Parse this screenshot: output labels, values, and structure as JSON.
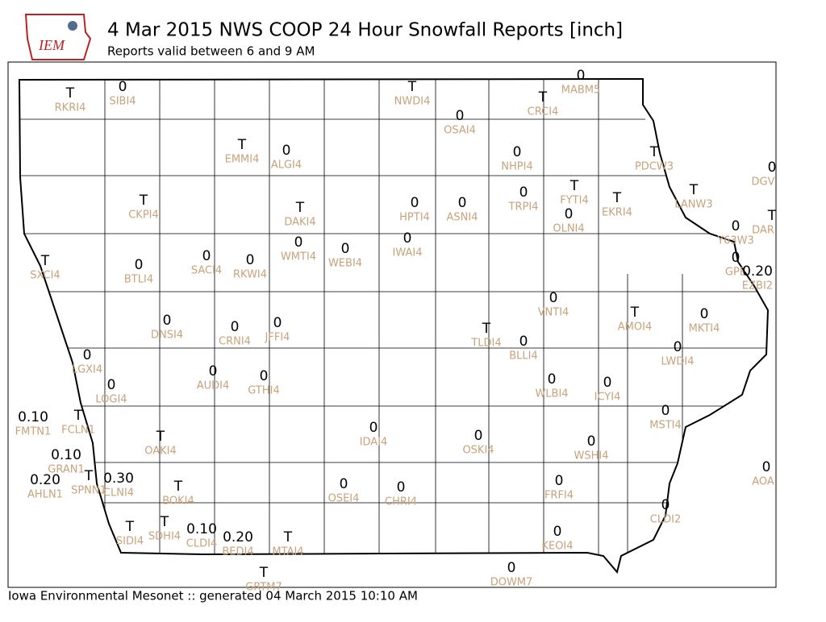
{
  "header": {
    "logo_text": "IEM",
    "title": "4 Mar 2015 NWS COOP 24 Hour Snowfall Reports [inch]",
    "subtitle": "Reports valid between 6 and 9 AM"
  },
  "footer": "Iowa Environmental Mesonet :: generated 04 March 2015 10:10 AM",
  "stations": [
    {
      "id": "RKRI4",
      "value": "T"
    },
    {
      "id": "SIBI4",
      "value": "0"
    },
    {
      "id": "NWDI4",
      "value": "T"
    },
    {
      "id": "MABM5",
      "value": "0"
    },
    {
      "id": "CRCI4",
      "value": "T"
    },
    {
      "id": "OSAI4",
      "value": "0"
    },
    {
      "id": "EMMI4",
      "value": "T"
    },
    {
      "id": "ALGI4",
      "value": "0"
    },
    {
      "id": "NHPI4",
      "value": "0"
    },
    {
      "id": "PDCW3",
      "value": "T"
    },
    {
      "id": "DGV",
      "value": "0"
    },
    {
      "id": "CKPI4",
      "value": "T"
    },
    {
      "id": "DAKI4",
      "value": "T"
    },
    {
      "id": "HPTI4",
      "value": "0"
    },
    {
      "id": "ASNI4",
      "value": "0"
    },
    {
      "id": "TRPI4",
      "value": "0"
    },
    {
      "id": "FYTI4",
      "value": "T"
    },
    {
      "id": "EKRI4",
      "value": "T"
    },
    {
      "id": "LANW3",
      "value": "T"
    },
    {
      "id": "OLNI4",
      "value": "0"
    },
    {
      "id": "DAR",
      "value": "T"
    },
    {
      "id": "Y63W3",
      "value": "0"
    },
    {
      "id": "SXCI4",
      "value": "T"
    },
    {
      "id": "BTLI4",
      "value": "0"
    },
    {
      "id": "SACI4",
      "value": "0"
    },
    {
      "id": "RKWI4",
      "value": "0"
    },
    {
      "id": "WMTI4",
      "value": "0"
    },
    {
      "id": "WEBI4",
      "value": "0"
    },
    {
      "id": "IWAI4",
      "value": "0"
    },
    {
      "id": "GPE",
      "value": "0"
    },
    {
      "id": "EZBI2",
      "value": "0.20"
    },
    {
      "id": "VNTI4",
      "value": "0"
    },
    {
      "id": "AMOI4",
      "value": "T"
    },
    {
      "id": "MKTI4",
      "value": "0"
    },
    {
      "id": "DNSI4",
      "value": "0"
    },
    {
      "id": "CRNI4",
      "value": "0"
    },
    {
      "id": "JFFI4",
      "value": "0"
    },
    {
      "id": "TLDI4",
      "value": "T"
    },
    {
      "id": "BLLI4",
      "value": "0"
    },
    {
      "id": "LWDI4",
      "value": "0"
    },
    {
      "id": "LGXI4",
      "value": "0"
    },
    {
      "id": "LOGI4",
      "value": "0"
    },
    {
      "id": "AUDI4",
      "value": "0"
    },
    {
      "id": "GTHI4",
      "value": "0"
    },
    {
      "id": "WLBI4",
      "value": "0"
    },
    {
      "id": "ICYI4",
      "value": "0"
    },
    {
      "id": "FMTN1",
      "value": "0.10"
    },
    {
      "id": "FCLN1",
      "value": "T"
    },
    {
      "id": "MSTI4",
      "value": "0"
    },
    {
      "id": "OAKI4",
      "value": "T"
    },
    {
      "id": "IDAI4",
      "value": "0"
    },
    {
      "id": "OSKI4",
      "value": "0"
    },
    {
      "id": "WSHI4",
      "value": "0"
    },
    {
      "id": "GRAN1",
      "value": "0.10"
    },
    {
      "id": "SPNN1",
      "value": "T"
    },
    {
      "id": "AHLN1",
      "value": "0.20"
    },
    {
      "id": "CLNI4",
      "value": "0.30"
    },
    {
      "id": "FRFI4",
      "value": "0"
    },
    {
      "id": "AOA",
      "value": "0"
    },
    {
      "id": "OSEI4",
      "value": "0"
    },
    {
      "id": "CHRI4",
      "value": "0"
    },
    {
      "id": "BOKI4",
      "value": "T"
    },
    {
      "id": "CLDI2",
      "value": "0"
    },
    {
      "id": "SIDI4",
      "value": "T"
    },
    {
      "id": "SDHI4",
      "value": "T"
    },
    {
      "id": "CLDI4",
      "value": "0.10"
    },
    {
      "id": "BEDI4",
      "value": "0.20"
    },
    {
      "id": "MTAI4",
      "value": "T"
    },
    {
      "id": "KEOI4",
      "value": "0"
    },
    {
      "id": "DOWM7",
      "value": "0"
    },
    {
      "id": "GRTM7",
      "value": "T"
    }
  ]
}
